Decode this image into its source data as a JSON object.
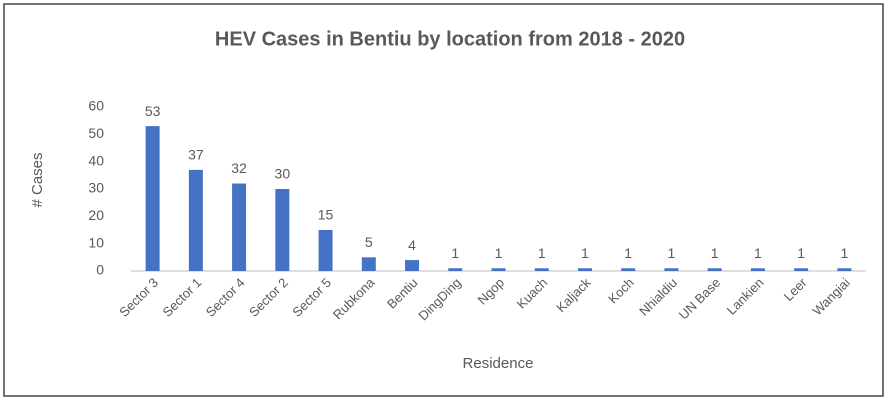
{
  "chart_data": {
    "type": "bar",
    "title": "HEV Cases in Bentiu by location from 2018  - 2020",
    "x_label": "Residence",
    "y_label": "# Cases",
    "categories": [
      "Sector 3",
      "Sector 1",
      "Sector 4",
      "Sector 2",
      "Sector 5",
      "Rubkona",
      "Bentiu",
      "DingDing",
      "Ngop",
      "Kuach",
      "Kaljack",
      "Koch",
      "Nhialdiu",
      "UN Base",
      "Lankien",
      "Leer",
      "Wangiai"
    ],
    "values": [
      53,
      37,
      32,
      30,
      15,
      5,
      4,
      1,
      1,
      1,
      1,
      1,
      1,
      1,
      1,
      1,
      1
    ],
    "color": "#4472c4",
    "ylim": [
      0,
      60
    ],
    "yticks": [
      0,
      10,
      20,
      30,
      40,
      50,
      60
    ],
    "grid": false
  }
}
